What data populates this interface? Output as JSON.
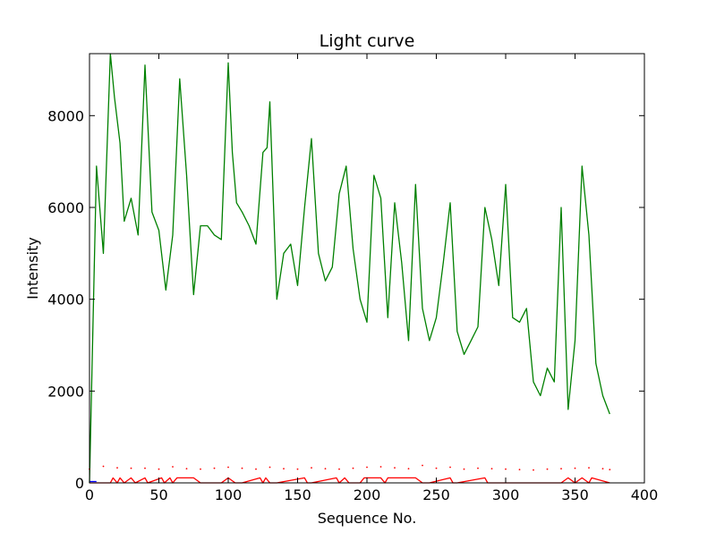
{
  "chart_data": {
    "type": "line",
    "title": "Light curve",
    "xlabel": "Sequence No.",
    "ylabel": "Intensity",
    "xlim": [
      0,
      400
    ],
    "ylim": [
      0,
      9350
    ],
    "xticks": [
      0,
      50,
      100,
      150,
      200,
      250,
      300,
      350,
      400
    ],
    "yticks": [
      0,
      2000,
      4000,
      6000,
      8000
    ],
    "grid": false,
    "legend": "none",
    "series": [
      {
        "color": "#008000",
        "style": "solid",
        "x": [
          0,
          5,
          10,
          15,
          18,
          22,
          25,
          30,
          35,
          40,
          45,
          50,
          55,
          60,
          65,
          70,
          75,
          80,
          85,
          90,
          95,
          100,
          103,
          106,
          110,
          115,
          120,
          125,
          128,
          130,
          135,
          140,
          145,
          150,
          155,
          160,
          165,
          170,
          175,
          180,
          185,
          190,
          195,
          200,
          205,
          210,
          215,
          220,
          225,
          230,
          235,
          240,
          245,
          250,
          255,
          260,
          265,
          270,
          275,
          280,
          285,
          290,
          295,
          300,
          305,
          310,
          315,
          320,
          325,
          330,
          335,
          340,
          345,
          350,
          355,
          360,
          365,
          370,
          375
        ],
        "values": [
          0,
          6900,
          5000,
          9350,
          8400,
          7400,
          5700,
          6200,
          5400,
          9100,
          5900,
          5500,
          4200,
          5400,
          8800,
          6700,
          4100,
          5600,
          5600,
          5400,
          5300,
          9150,
          7200,
          6100,
          5900,
          5600,
          5200,
          7200,
          7300,
          8300,
          4000,
          5000,
          5200,
          4300,
          6000,
          7500,
          5000,
          4400,
          4700,
          6300,
          6900,
          5100,
          4000,
          3500,
          6700,
          6200,
          3600,
          6100,
          4800,
          3100,
          6500,
          3800,
          3100,
          3600,
          4800,
          6100,
          3300,
          2800,
          3100,
          3400,
          6000,
          5300,
          4300,
          6500,
          3600,
          3500,
          3800,
          2200,
          1900,
          2500,
          2200,
          6000,
          1600,
          3100,
          6900,
          5400,
          2600,
          1900,
          1500
        ]
      },
      {
        "color": "#ff0000",
        "style": "dotted",
        "x": [
          0,
          10,
          20,
          30,
          40,
          50,
          60,
          70,
          80,
          90,
          100,
          110,
          120,
          130,
          140,
          150,
          160,
          170,
          180,
          190,
          200,
          210,
          220,
          230,
          240,
          250,
          260,
          270,
          280,
          290,
          300,
          310,
          320,
          330,
          340,
          350,
          360,
          370,
          375
        ],
        "values": [
          300,
          360,
          330,
          320,
          320,
          300,
          350,
          310,
          300,
          320,
          340,
          320,
          300,
          340,
          310,
          300,
          330,
          310,
          300,
          320,
          340,
          350,
          330,
          310,
          380,
          320,
          340,
          300,
          320,
          310,
          300,
          290,
          280,
          300,
          310,
          320,
          330,
          310,
          290
        ]
      },
      {
        "color": "#ff0000",
        "style": "solid",
        "x": [
          0,
          15,
          17,
          20,
          22,
          25,
          30,
          33,
          40,
          42,
          52,
          54,
          58,
          60,
          63,
          65,
          70,
          75,
          80,
          95,
          100,
          105,
          110,
          123,
          125,
          127,
          130,
          135,
          155,
          157,
          160,
          178,
          180,
          184,
          187,
          195,
          198,
          200,
          205,
          210,
          213,
          215,
          220,
          225,
          235,
          240,
          245,
          260,
          262,
          265,
          285,
          287,
          290,
          340,
          345,
          350,
          355,
          360,
          362,
          375
        ],
        "values": [
          0,
          0,
          110,
          0,
          110,
          0,
          110,
          0,
          110,
          0,
          110,
          0,
          110,
          0,
          110,
          110,
          110,
          110,
          0,
          0,
          110,
          0,
          0,
          110,
          0,
          110,
          0,
          0,
          110,
          0,
          0,
          110,
          0,
          110,
          0,
          0,
          110,
          110,
          110,
          110,
          0,
          110,
          110,
          110,
          110,
          0,
          0,
          110,
          0,
          0,
          110,
          0,
          0,
          0,
          110,
          0,
          110,
          0,
          110,
          0
        ]
      },
      {
        "color": "#0000ff",
        "style": "solid",
        "x": [
          0,
          5
        ],
        "values": [
          30,
          30
        ]
      }
    ]
  }
}
